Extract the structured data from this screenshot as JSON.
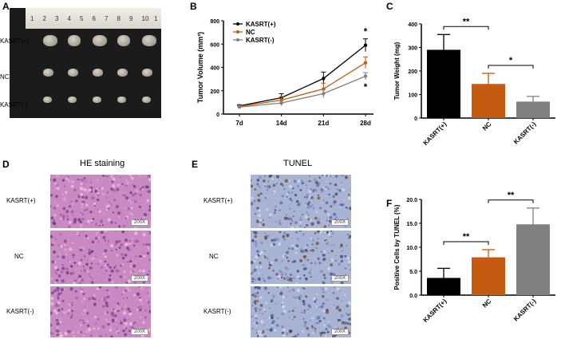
{
  "panels": {
    "A": {
      "letter": "A",
      "ruler_numbers": [
        "1",
        "2",
        "3",
        "4",
        "5",
        "6",
        "7",
        "8",
        "9",
        "10",
        "1"
      ],
      "row_labels": [
        "KASRT(+)",
        "NC",
        "KASRT(-)"
      ]
    },
    "B": {
      "letter": "B"
    },
    "C": {
      "letter": "C"
    },
    "D": {
      "letter": "D",
      "title": "HE staining",
      "row_labels": [
        "KASRT(+)",
        "NC",
        "KASRT(-)"
      ],
      "scale": "200X"
    },
    "E": {
      "letter": "E",
      "title": "TUNEL",
      "row_labels": [
        "KASRT(+)",
        "NC",
        "KASRT(-)"
      ],
      "scale": "200X"
    },
    "F": {
      "letter": "F"
    }
  },
  "colors": {
    "kasrt_pos": "#000000",
    "nc": "#c55a11",
    "kasrt_neg": "#808080",
    "he": "#c98ac3",
    "tunel": "#a9b4d4"
  },
  "chart_data": [
    {
      "id": "B",
      "type": "line",
      "ylabel": "Tumor Volume (mm³)",
      "x": [
        "7d",
        "14d",
        "21d",
        "28d"
      ],
      "ylim": [
        0,
        800
      ],
      "yticks": [
        0,
        200,
        400,
        600,
        800
      ],
      "series": [
        {
          "name": "KASRT(+)",
          "color": "#000000",
          "values": [
            70,
            140,
            305,
            590
          ],
          "errors": [
            10,
            35,
            55,
            55
          ]
        },
        {
          "name": "NC",
          "color": "#c55a11",
          "values": [
            65,
            120,
            215,
            440
          ],
          "errors": [
            10,
            30,
            50,
            50
          ]
        },
        {
          "name": "KASRT(-)",
          "color": "#808080",
          "values": [
            60,
            95,
            175,
            325
          ],
          "errors": [
            10,
            25,
            35,
            30
          ]
        }
      ],
      "annotations": [
        "*",
        "*"
      ],
      "legend": "top-left"
    },
    {
      "id": "C",
      "type": "bar",
      "ylabel": "Tumor Weight (mg)",
      "categories": [
        "KASRT(+)",
        "NC",
        "KASRT(-)"
      ],
      "values": [
        290,
        145,
        70
      ],
      "errors": [
        65,
        45,
        22
      ],
      "colors": [
        "#000000",
        "#c55a11",
        "#808080"
      ],
      "ylim": [
        0,
        400
      ],
      "yticks": [
        0,
        100,
        200,
        300,
        400
      ],
      "significance": [
        {
          "from": 0,
          "to": 1,
          "label": "**"
        },
        {
          "from": 1,
          "to": 2,
          "label": "*"
        }
      ]
    },
    {
      "id": "F",
      "type": "bar",
      "ylabel": "Positive Cells by TUNEL (%)",
      "categories": [
        "KASRT(+)",
        "NC",
        "KASRT(-)"
      ],
      "values": [
        3.6,
        7.9,
        14.8
      ],
      "errors": [
        2.0,
        1.6,
        3.4
      ],
      "colors": [
        "#000000",
        "#c55a11",
        "#808080"
      ],
      "ylim": [
        0,
        20
      ],
      "yticks": [
        "0.0",
        "5.0",
        "10.0",
        "15.0",
        "20.0"
      ],
      "significance": [
        {
          "from": 0,
          "to": 1,
          "label": "**"
        },
        {
          "from": 1,
          "to": 2,
          "label": "**"
        }
      ]
    }
  ]
}
